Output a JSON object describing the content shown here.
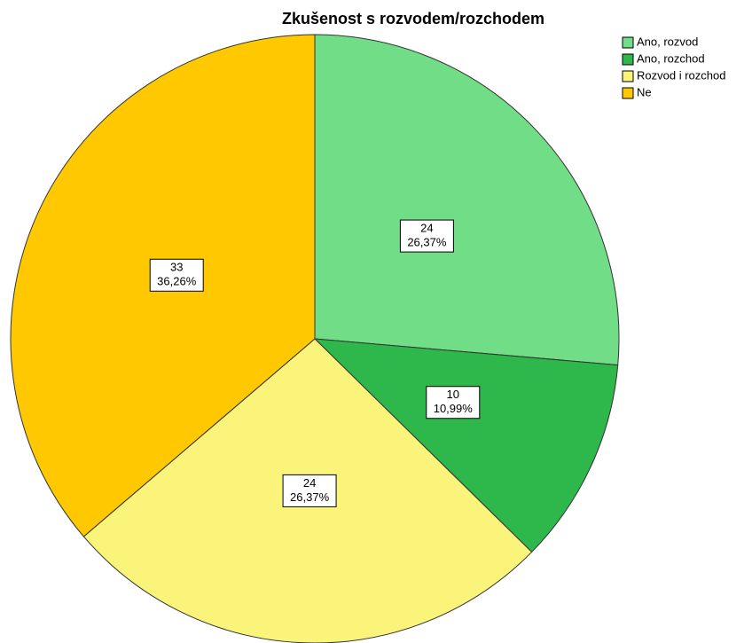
{
  "chart_data": {
    "type": "pie",
    "title": "Zkušenost s rozvodem/rozchodem",
    "categories": [
      "Ano, rozvod",
      "Ano, rozchod",
      "Rozvod i rozchod",
      "Ne"
    ],
    "values": [
      24,
      10,
      24,
      33
    ],
    "percent_labels": [
      "26,37%",
      "10,99%",
      "26,37%",
      "36,26%"
    ],
    "colors": [
      "#72dd87",
      "#2eb84b",
      "#faf57a",
      "#ffc800"
    ],
    "legend": "top-right"
  }
}
